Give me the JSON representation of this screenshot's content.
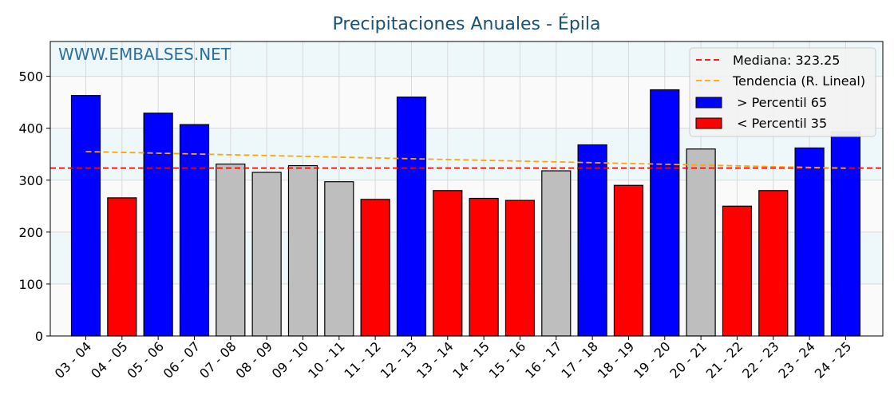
{
  "chart_data": {
    "type": "bar",
    "title": "Precipitaciones Anuales - Épila",
    "watermark": "WWW.EMBALSES.NET",
    "categories": [
      "03 - 04",
      "04 - 05",
      "05 - 06",
      "06 - 07",
      "07 - 08",
      "08 - 09",
      "09 - 10",
      "10 - 11",
      "11 - 12",
      "12 - 13",
      "13 - 14",
      "14 - 15",
      "15 - 16",
      "16 - 17",
      "17 - 18",
      "18 - 19",
      "19 - 20",
      "20 - 21",
      "21 - 22",
      "22 - 23",
      "23 - 24",
      "24 - 25"
    ],
    "values": [
      463,
      266,
      429,
      407,
      331,
      315,
      328,
      297,
      263,
      460,
      280,
      265,
      261,
      318,
      368,
      290,
      474,
      360,
      250,
      280,
      362,
      393
    ],
    "classes": [
      "high",
      "low",
      "high",
      "high",
      "mid",
      "mid",
      "mid",
      "mid",
      "low",
      "high",
      "low",
      "low",
      "low",
      "mid",
      "high",
      "low",
      "high",
      "mid",
      "low",
      "low",
      "high",
      "high"
    ],
    "last_bar_highlight_value": 384,
    "ylim": [
      0,
      567
    ],
    "yticks": [
      0,
      100,
      200,
      300,
      400,
      500
    ],
    "median": 323.25,
    "trend": {
      "start": 355,
      "end": 323
    },
    "colors": {
      "high": "#0000ff",
      "low": "#ff0000",
      "mid": "#bebebe",
      "median_line": "#ff0000",
      "trend_line": "#ffa500",
      "band_light": "#eef7fa",
      "band_plain": "#fafafa",
      "grid": "#d9d9d9",
      "highlight": "#7070ee"
    },
    "grid": true,
    "legend": {
      "position": "top-right",
      "entries": [
        {
          "key": "median",
          "label": "Mediana: 323.25"
        },
        {
          "key": "trend",
          "label": "Tendencia (R. Lineal)"
        },
        {
          "key": "high",
          "label": " > Percentil 65"
        },
        {
          "key": "low",
          "label": " < Percentil 35"
        }
      ]
    }
  }
}
